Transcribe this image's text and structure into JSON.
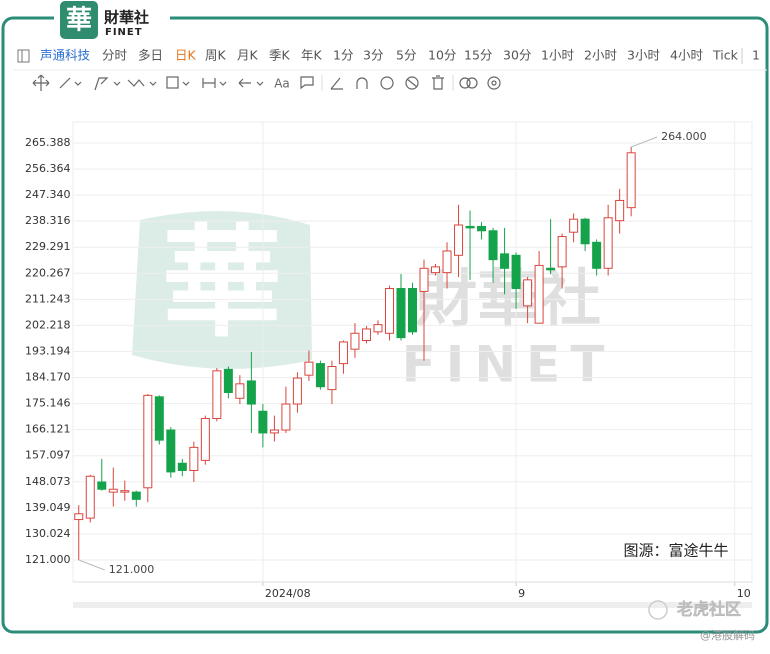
{
  "header": {
    "logo_char": "華",
    "brand": "財華社",
    "brand_latin": "FINET"
  },
  "toolbar": {
    "stock": "声通科技",
    "periods": [
      "分时",
      "多日",
      "日K",
      "周K",
      "月K",
      "季K",
      "年K",
      "1分",
      "3分",
      "5分",
      "10分",
      "15分",
      "30分",
      "1小时",
      "2小时",
      "3小时",
      "4小时",
      "Tick",
      "1"
    ],
    "active": 2,
    "text_tool": "Aa"
  },
  "chart_data": {
    "type": "candlestick",
    "categories": [
      null,
      null,
      null,
      null,
      null,
      null,
      null,
      null,
      null,
      null,
      null,
      null,
      null,
      null,
      null,
      null,
      "2024/08",
      null,
      null,
      null,
      null,
      null,
      null,
      null,
      null,
      null,
      null,
      null,
      null,
      null,
      null,
      null,
      null,
      null,
      null,
      null,
      null,
      null,
      "9",
      null,
      null,
      null,
      null,
      null,
      null,
      null,
      null,
      null,
      null,
      null,
      null,
      null,
      null,
      null,
      null,
      null,
      null,
      "10",
      null
    ],
    "open": [
      135,
      135.5,
      148,
      144.5,
      144.5,
      144.5,
      146,
      177.5,
      166,
      154.5,
      152,
      155.5,
      170,
      187,
      177,
      183,
      172.5,
      165,
      166,
      175,
      185,
      189,
      180,
      189,
      194,
      197,
      200,
      199.5,
      215,
      215,
      214,
      220.5,
      220.5,
      226.5,
      236.5,
      236.5,
      235,
      227,
      226.5,
      209,
      203,
      222,
      222.5,
      234.5,
      239,
      231,
      222,
      238.5,
      243,
      null,
      null,
      null,
      null,
      null,
      null,
      null,
      null,
      null,
      null
    ],
    "high": [
      140,
      150.5,
      156,
      153,
      148.5,
      145,
      178.5,
      178,
      167,
      156,
      162,
      171,
      187.5,
      188,
      185,
      193,
      175,
      171,
      181,
      186,
      193.5,
      190,
      190,
      197,
      203,
      202,
      204,
      216,
      220,
      217,
      225,
      223.5,
      231,
      244,
      242,
      238,
      236,
      236,
      227.5,
      219,
      228,
      239,
      234,
      241,
      239.5,
      232,
      244,
      249.5,
      264,
      null,
      null,
      null,
      null,
      null,
      null,
      null,
      null,
      null,
      null
    ],
    "low": [
      121,
      134,
      145,
      139.5,
      141.5,
      139.5,
      141,
      161,
      149.5,
      150,
      148,
      154,
      169,
      177,
      175,
      165,
      160,
      162,
      165,
      172,
      183,
      180,
      175,
      185.5,
      191,
      196,
      199,
      197,
      197,
      199,
      190,
      219.5,
      215,
      219,
      218,
      232,
      217,
      213,
      208,
      203,
      203,
      220,
      215,
      231,
      228,
      219.5,
      219.5,
      234,
      240,
      null,
      null,
      null,
      null,
      null,
      null,
      null,
      null,
      null,
      null
    ],
    "close": [
      137,
      150,
      145.5,
      145.5,
      145,
      142,
      178,
      162.5,
      151.5,
      152,
      160,
      170,
      186.5,
      179,
      182,
      175,
      165,
      166,
      175,
      184,
      189.5,
      181,
      188,
      196.5,
      199.5,
      201,
      202.5,
      215,
      198,
      200,
      222,
      222.5,
      228,
      237,
      236,
      235,
      225,
      222,
      215,
      218,
      223,
      221.5,
      233,
      239,
      230.5,
      222,
      239.5,
      245.5,
      262,
      null,
      null,
      null,
      null,
      null,
      null,
      null,
      null,
      null,
      null
    ],
    "up_color": "#d9463f",
    "down_color": "#14a34a",
    "ylim": [
      113.38,
      272.66
    ],
    "yticks": [
      {
        "value": 121,
        "label": "121.000"
      },
      130.024,
      139.049,
      148.073,
      157.097,
      166.121,
      175.146,
      {
        "value": 184.17,
        "label": "184.170"
      },
      193.194,
      202.218,
      211.243,
      220.267,
      229.291,
      238.316,
      {
        "value": 247.34,
        "label": "247.340"
      },
      256.364,
      265.388
    ],
    "grid": true,
    "annotations": [
      {
        "value": 264,
        "label": "264.000"
      },
      {
        "value": 121,
        "label": "121.000"
      }
    ]
  },
  "watermark": {
    "logo_char": "華",
    "brand": "財華社",
    "latin": "FINET"
  },
  "source": "图源：富途牛牛",
  "footer": {
    "community": "老虎社区",
    "author": "@港股解码"
  }
}
